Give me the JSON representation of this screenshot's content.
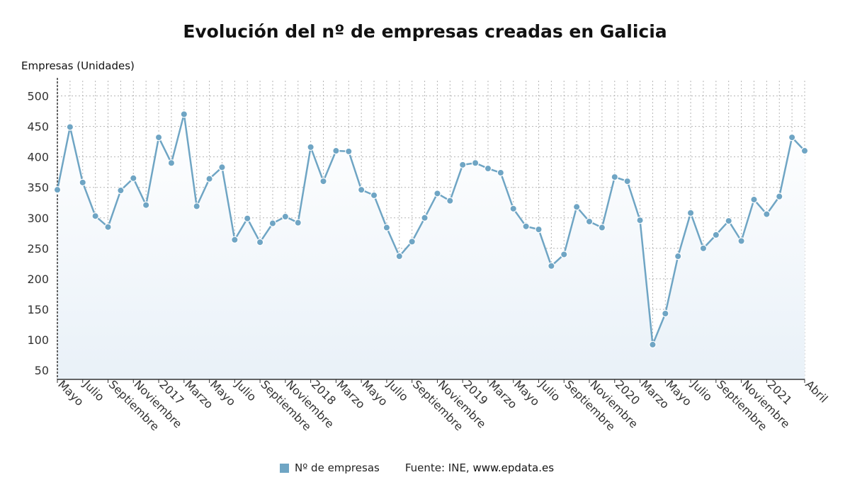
{
  "header": {
    "title": "Evolución del nº de empresas creadas en Galicia"
  },
  "axis": {
    "ylabel": "Empresas (Unidades)"
  },
  "legend": {
    "series_label": "Nº de empresas"
  },
  "footer": {
    "source_prefix": "Fuente: INE, ",
    "source_site": "www.epdata.es"
  },
  "colors": {
    "line": "#6fa5c4",
    "marker": "#6fa5c4",
    "fill": "#e9f1f8",
    "grid": "#b5b5b5",
    "axis": "#333333"
  },
  "chart_data": {
    "type": "line",
    "title": "Evolución del nº de empresas creadas en Galicia",
    "ylabel": "Empresas (Unidades)",
    "ylim": [
      35,
      525
    ],
    "yticks": [
      50,
      100,
      150,
      200,
      250,
      300,
      350,
      400,
      450,
      500
    ],
    "grid": true,
    "legend_position": "bottom",
    "x": [
      "2016-05",
      "2016-06",
      "2016-07",
      "2016-08",
      "2016-09",
      "2016-10",
      "2016-11",
      "2016-12",
      "2017-01",
      "2017-02",
      "2017-03",
      "2017-04",
      "2017-05",
      "2017-06",
      "2017-07",
      "2017-08",
      "2017-09",
      "2017-10",
      "2017-11",
      "2017-12",
      "2018-01",
      "2018-02",
      "2018-03",
      "2018-04",
      "2018-05",
      "2018-06",
      "2018-07",
      "2018-08",
      "2018-09",
      "2018-10",
      "2018-11",
      "2018-12",
      "2019-01",
      "2019-02",
      "2019-03",
      "2019-04",
      "2019-05",
      "2019-06",
      "2019-07",
      "2019-08",
      "2019-09",
      "2019-10",
      "2019-11",
      "2019-12",
      "2020-01",
      "2020-02",
      "2020-03",
      "2020-04",
      "2020-05",
      "2020-06",
      "2020-07",
      "2020-08",
      "2020-09",
      "2020-10",
      "2020-11",
      "2020-12",
      "2021-01",
      "2021-02",
      "2021-03",
      "2021-04"
    ],
    "xtick_labels": [
      "Mayo",
      "Julio",
      "Septiembre",
      "Noviembre",
      "2017",
      "Marzo",
      "Mayo",
      "Julio",
      "Septiembre",
      "Noviembre",
      "2018",
      "Marzo",
      "Mayo",
      "Julio",
      "Septiembre",
      "Noviembre",
      "2019",
      "Marzo",
      "Mayo",
      "Julio",
      "Septiembre",
      "Noviembre",
      "2020",
      "Marzo",
      "Mayo",
      "Julio",
      "Septiembre",
      "Noviembre",
      "2021",
      "Abril"
    ],
    "xtick_positions": [
      0,
      2,
      4,
      6,
      8,
      10,
      12,
      14,
      16,
      18,
      20,
      22,
      24,
      26,
      28,
      30,
      32,
      34,
      36,
      38,
      40,
      42,
      44,
      46,
      48,
      50,
      52,
      54,
      56,
      59
    ],
    "series": [
      {
        "name": "Nº de empresas",
        "values": [
          346,
          449,
          358,
          303,
          285,
          345,
          365,
          321,
          432,
          390,
          470,
          319,
          364,
          383,
          264,
          299,
          260,
          291,
          302,
          292,
          416,
          360,
          410,
          409,
          346,
          337,
          284,
          237,
          261,
          300,
          340,
          328,
          387,
          390,
          381,
          374,
          315,
          286,
          281,
          221,
          240,
          318,
          294,
          284,
          367,
          360,
          296,
          92,
          143,
          237,
          308,
          250,
          272,
          295,
          262,
          330,
          306,
          335,
          432,
          410
        ]
      }
    ]
  }
}
